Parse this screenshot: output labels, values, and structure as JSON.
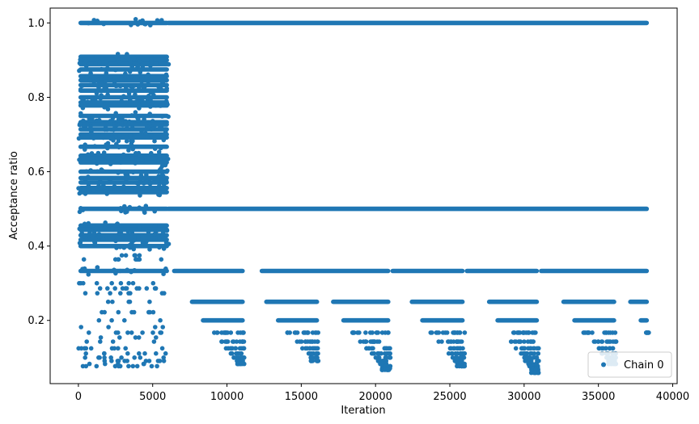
{
  "chart_data": {
    "type": "scatter",
    "title": "",
    "xlabel": "Iteration",
    "ylabel": "Acceptance ratio",
    "xlim": [
      -1900,
      40300
    ],
    "ylim": [
      0.03,
      1.04
    ],
    "xticks": [
      0,
      5000,
      10000,
      15000,
      20000,
      25000,
      30000,
      35000,
      40000
    ],
    "xtick_labels": [
      "0",
      "5000",
      "10000",
      "15000",
      "20000",
      "25000",
      "30000",
      "35000",
      "40000"
    ],
    "yticks": [
      0.2,
      0.4,
      0.6,
      0.8,
      1.0
    ],
    "ytick_labels": [
      "0.2",
      "0.4",
      "0.6",
      "0.8",
      "1.0"
    ],
    "grid": false,
    "legend": {
      "position": "lower-right",
      "entries": [
        "Chain 0"
      ]
    },
    "color": "#1f77b4",
    "series": [
      {
        "name": "Chain 0",
        "marker": "dot",
        "x_max": 38400,
        "phases": [
          {
            "x_range": [
              0,
              6100
            ],
            "dense_levels": [
              1.0,
              0.909,
              0.9,
              0.889,
              0.875,
              0.857,
              0.846,
              0.833,
              0.818,
              0.8,
              0.786,
              0.778,
              0.75,
              0.733,
              0.727,
              0.714,
              0.7,
              0.692,
              0.667,
              0.643,
              0.636,
              0.625,
              0.6,
              0.583,
              0.571,
              0.556,
              0.545,
              0.5,
              0.455,
              0.444,
              0.429,
              0.417,
              0.4,
              0.333
            ],
            "sparse_levels": [
              0.375,
              0.364,
              0.3,
              0.286,
              0.273,
              0.25,
              0.222,
              0.2,
              0.182,
              0.167,
              0.154,
              0.143,
              0.125,
              0.111,
              0.1,
              0.091,
              0.083,
              0.077
            ]
          },
          {
            "x_range": [
              6100,
              38400
            ],
            "continuous_levels": [
              1.0,
              0.5
            ],
            "level_0_333_segments": [
              [
                6300,
                11200
              ],
              [
                12200,
                21000
              ],
              [
                21000,
                26000
              ],
              [
                26000,
                31000
              ],
              [
                31000,
                38400
              ]
            ],
            "lower_level_clusters": [
              {
                "x_range": [
                  7500,
                  11200
                ],
                "y_min": 0.083
              },
              {
                "x_range": [
                  12500,
                  16200
                ],
                "y_min": 0.091
              },
              {
                "x_range": [
                  17000,
                  21000
                ],
                "y_min": 0.067
              },
              {
                "x_range": [
                  22300,
                  26000
                ],
                "y_min": 0.077
              },
              {
                "x_range": [
                  27500,
                  31000
                ],
                "y_min": 0.059
              },
              {
                "x_range": [
                  32500,
                  36200
                ],
                "y_min": 0.083
              },
              {
                "x_range": [
                  37000,
                  38400
                ],
                "y_min": 0.167
              }
            ],
            "lower_levels": [
              0.25,
              0.2,
              0.167,
              0.143,
              0.125,
              0.111,
              0.1,
              0.091,
              0.083,
              0.077,
              0.071,
              0.067,
              0.059
            ]
          }
        ]
      }
    ]
  }
}
